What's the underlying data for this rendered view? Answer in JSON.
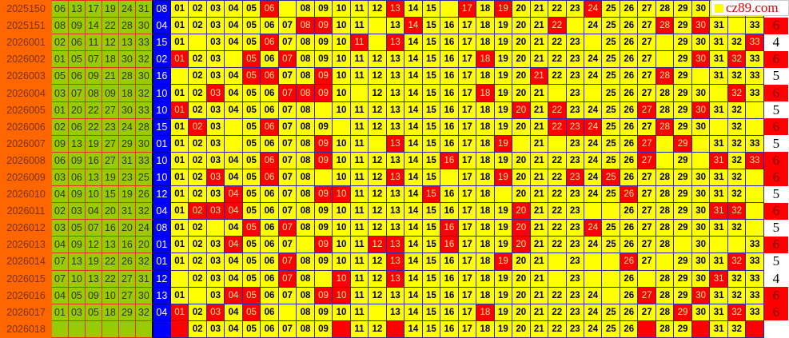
{
  "logo": {
    "text": "cz89.com"
  },
  "colors": {
    "period": "#FF6600",
    "red_ball": "#99CC00",
    "blue_ball": "#0000FF",
    "cell": "#FFFF00",
    "hit": "#FF0000"
  },
  "grid_labels": [
    "01",
    "02",
    "03",
    "04",
    "05",
    "06",
    "07",
    "08",
    "09",
    "10",
    "11",
    "12",
    "13",
    "14",
    "15",
    "16",
    "17",
    "18",
    "19",
    "20",
    "21",
    "22",
    "23",
    "24",
    "25",
    "26",
    "27",
    "28",
    "29",
    "30",
    "31",
    "32",
    "33"
  ],
  "rows": [
    {
      "period": "2025150",
      "reds": [
        "06",
        "13",
        "17",
        "19",
        "24",
        "31"
      ],
      "blue": "08",
      "hits": [
        6,
        13,
        17,
        19,
        24
      ],
      "blanks": [
        7,
        16
      ],
      "count": ""
    },
    {
      "period": "2025151",
      "reds": [
        "08",
        "09",
        "14",
        "22",
        "28",
        "30"
      ],
      "blue": "04",
      "hits": [
        8,
        9,
        14,
        22,
        28,
        30
      ],
      "blanks": [
        12,
        23,
        32
      ],
      "count": "6"
    },
    {
      "period": "2026001",
      "reds": [
        "02",
        "06",
        "11",
        "12",
        "13",
        "33"
      ],
      "blue": "15",
      "hits": [
        6,
        11,
        13,
        33
      ],
      "blanks": [
        2,
        12,
        24,
        28
      ],
      "count": "4"
    },
    {
      "period": "2026002",
      "reds": [
        "01",
        "05",
        "07",
        "18",
        "30",
        "32"
      ],
      "blue": "02",
      "hits": [
        1,
        5,
        7,
        18,
        30,
        32
      ],
      "blanks": [
        4,
        28
      ],
      "count": "6"
    },
    {
      "period": "2026003",
      "reds": [
        "05",
        "06",
        "09",
        "21",
        "28",
        "30"
      ],
      "blue": "16",
      "hits": [
        5,
        6,
        9,
        21,
        28
      ],
      "blanks": [
        1,
        30
      ],
      "count": "5"
    },
    {
      "period": "2026004",
      "reds": [
        "03",
        "07",
        "08",
        "09",
        "18",
        "32"
      ],
      "blue": "10",
      "hits": [
        3,
        7,
        8,
        9,
        18,
        32
      ],
      "blanks": [
        11,
        22,
        24,
        31
      ],
      "count": "6"
    },
    {
      "period": "2026005",
      "reds": [
        "01",
        "20",
        "22",
        "27",
        "30",
        "33"
      ],
      "blue": "10",
      "hits": [
        1,
        20,
        22,
        27,
        30
      ],
      "blanks": [
        9,
        33
      ],
      "count": "5"
    },
    {
      "period": "2026006",
      "reds": [
        "02",
        "06",
        "22",
        "23",
        "24",
        "28"
      ],
      "blue": "15",
      "hits": [
        2,
        6,
        22,
        23,
        24,
        28
      ],
      "blanks": [
        4,
        10,
        31,
        33
      ],
      "count": "6"
    },
    {
      "period": "2026007",
      "reds": [
        "09",
        "13",
        "19",
        "27",
        "29",
        "30"
      ],
      "blue": "01",
      "hits": [
        9,
        13,
        19,
        27,
        29
      ],
      "blanks": [
        4,
        12,
        20,
        22,
        28,
        30
      ],
      "count": "5"
    },
    {
      "period": "2026008",
      "reds": [
        "06",
        "09",
        "16",
        "27",
        "31",
        "33"
      ],
      "blue": "10",
      "hits": [
        6,
        9,
        16,
        27,
        31,
        33
      ],
      "blanks": [
        28,
        30
      ],
      "count": "6"
    },
    {
      "period": "2026009",
      "reds": [
        "03",
        "06",
        "13",
        "19",
        "23",
        "25"
      ],
      "blue": "10",
      "hits": [
        3,
        6,
        13,
        19,
        23,
        25
      ],
      "blanks": [
        9,
        16,
        33
      ],
      "count": "6"
    },
    {
      "period": "2026010",
      "reds": [
        "04",
        "09",
        "10",
        "15",
        "19",
        "26"
      ],
      "blue": "12",
      "hits": [
        4,
        9,
        10,
        15,
        26
      ],
      "blanks": [
        19,
        33
      ],
      "count": "5"
    },
    {
      "period": "2026011",
      "reds": [
        "02",
        "03",
        "04",
        "20",
        "31",
        "32"
      ],
      "blue": "04",
      "hits": [
        2,
        3,
        4,
        20,
        31,
        32
      ],
      "blanks": [
        24,
        25,
        33
      ],
      "count": "6"
    },
    {
      "period": "2026012",
      "reds": [
        "03",
        "05",
        "07",
        "16",
        "20",
        "24"
      ],
      "blue": "08",
      "hits": [
        5,
        7,
        16,
        20,
        24
      ],
      "blanks": [
        3,
        33
      ],
      "count": "5"
    },
    {
      "period": "2026013",
      "reds": [
        "04",
        "09",
        "12",
        "13",
        "16",
        "20"
      ],
      "blue": "01",
      "hits": [
        4,
        9,
        12,
        13,
        16,
        20
      ],
      "blanks": [
        8,
        29,
        31,
        32
      ],
      "count": "6"
    },
    {
      "period": "2026014",
      "reds": [
        "07",
        "13",
        "19",
        "22",
        "26",
        "32"
      ],
      "blue": "01",
      "hits": [
        7,
        13,
        19,
        26,
        32
      ],
      "blanks": [
        22,
        24,
        25,
        28
      ],
      "count": "5"
    },
    {
      "period": "2026015",
      "reds": [
        "07",
        "10",
        "13",
        "22",
        "27",
        "31"
      ],
      "blue": "12",
      "hits": [
        7,
        10,
        13,
        31
      ],
      "blanks": [
        1,
        9,
        22,
        24,
        25,
        27
      ],
      "count": "4"
    },
    {
      "period": "2026016",
      "reds": [
        "04",
        "05",
        "09",
        "10",
        "27",
        "30"
      ],
      "blue": "13",
      "hits": [
        4,
        5,
        9,
        10,
        27,
        30
      ],
      "blanks": [
        2,
        25
      ],
      "count": "6"
    },
    {
      "period": "2026017",
      "reds": [
        "01",
        "03",
        "05",
        "18",
        "29",
        "32"
      ],
      "blue": "04",
      "hits": [
        1,
        3,
        5,
        18,
        29,
        32
      ],
      "blanks": [
        7,
        12
      ],
      "count": "6"
    },
    {
      "period": "2026018",
      "reds": [
        "",
        "",
        "",
        "",
        "",
        ""
      ],
      "blue": "",
      "hits": [],
      "marked": [
        1,
        10,
        13,
        27,
        30,
        33
      ],
      "blanks": [],
      "count": ""
    }
  ]
}
